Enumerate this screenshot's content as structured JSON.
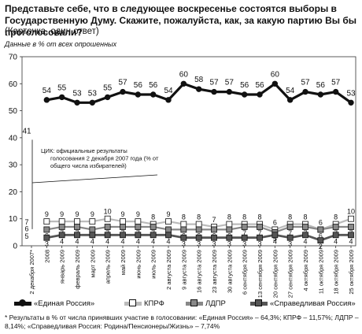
{
  "header": {
    "title": "Представьте себе, что в следующее воскресенье состоятся выборы в Государственную Думу. Скажите, пожалуйста, как, за какую партию Вы бы проголосовали?",
    "subtitle": "(Карточка, один ответ)",
    "units": "Данные в % от всех опрошенных"
  },
  "chart_data": {
    "type": "line",
    "ylim": [
      0,
      70
    ],
    "yticks": [
      0,
      10,
      20,
      30,
      40,
      50,
      60,
      70
    ],
    "grid": false,
    "categories": [
      "2 декабря 2007*",
      "2008",
      "январь 2009",
      "февраль 2009",
      "март 2009",
      "апрель 2009",
      "май 2009",
      "июнь 2009",
      "июль 2009",
      "2 августа 2009",
      "9 августа 2009",
      "16 августа 2009",
      "23 августа 2009",
      "30 августа 2009",
      "6 сентября 2009",
      "13 сентября 2009",
      "20 сентября 2009",
      "27 сентября 2009",
      "4 октября 2009",
      "11 октября 2009",
      "18 октября 2009",
      "25 октября 2009"
    ],
    "series": [
      {
        "name": "«Единая Россия»",
        "color": "#111111",
        "values": [
          41,
          54,
          55,
          53,
          53,
          55,
          57,
          56,
          56,
          54,
          60,
          58,
          57,
          57,
          56,
          56,
          60,
          54,
          57,
          56,
          57,
          53
        ]
      },
      {
        "name": "КПРФ",
        "color": "#bbbbbb",
        "values": [
          7,
          9,
          9,
          9,
          9,
          10,
          9,
          9,
          8,
          9,
          8,
          8,
          7,
          8,
          8,
          8,
          6,
          8,
          8,
          6,
          8,
          10
        ]
      },
      {
        "name": "ЛДПР",
        "color": "#888888",
        "values": [
          5,
          6,
          7,
          7,
          6,
          7,
          7,
          7,
          7,
          6,
          6,
          6,
          6,
          6,
          7,
          7,
          5,
          7,
          7,
          6,
          7,
          7
        ]
      },
      {
        "name": "«Справедливая Россия»",
        "color": "#555555",
        "values": [
          6,
          3,
          4,
          4,
          4,
          4,
          4,
          4,
          4,
          4,
          3,
          3,
          3,
          3,
          3,
          3,
          4,
          3,
          4,
          2,
          4,
          4
        ]
      }
    ],
    "annotation": "ЦИК: официальные результаты голосования 2 декабря 2007 года (% от общего числа избирателей)"
  },
  "footnote": "* Результаты в % от числа принявших участие в голосовании: «Единая Россия» – 64,3%; КПРФ – 11,57%; ЛДПР – 8,14%; «Справедливая Россия: Родина/Пенсионеры/Жизнь» – 7,74%"
}
